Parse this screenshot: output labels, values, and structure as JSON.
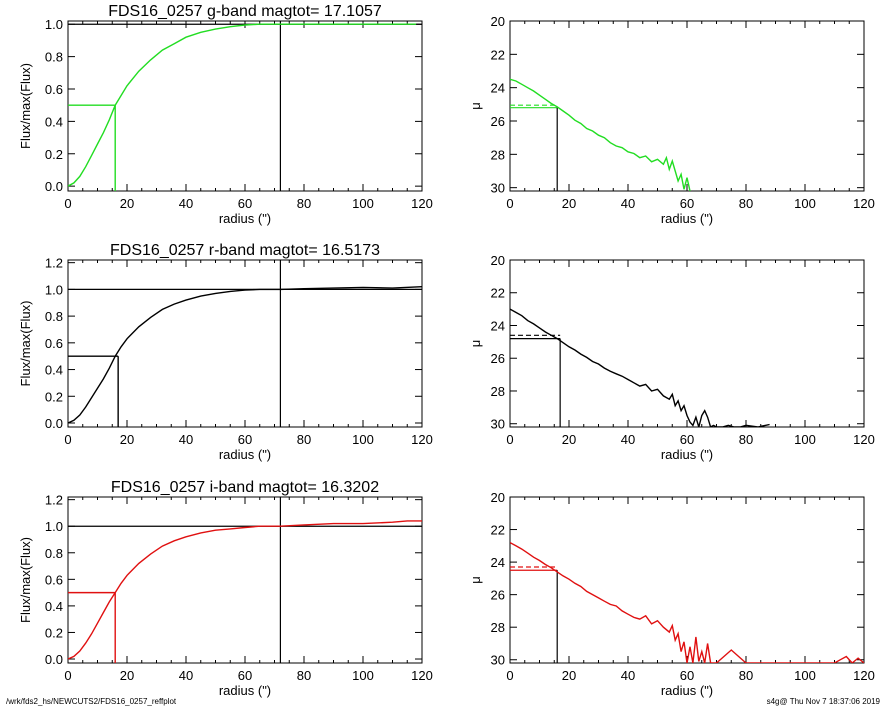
{
  "footer": {
    "path": "/wrk/fds2_hs/NEWCUTS2/FDS16_0257_reffplot",
    "stamp": "s4g@  Thu Nov  7 18:37:06 2019"
  },
  "colors": {
    "g": "#22dd22",
    "r": "#000000",
    "i": "#e01010"
  },
  "chart_data": [
    {
      "id": "g-growth",
      "type": "line",
      "title": "FDS16_0257 g-band  magtot=      17.1057",
      "xlabel": "radius (\")",
      "ylabel": "Flux/max(Flux)",
      "xlim": [
        0,
        120
      ],
      "ylim": [
        -0.03,
        1.02
      ],
      "xticks": [
        "0",
        "20",
        "40",
        "60",
        "80",
        "100",
        "120"
      ],
      "yticks": [
        "0.0",
        "0.2",
        "0.4",
        "0.6",
        "0.8",
        "1.0"
      ],
      "color": "#22dd22",
      "curve": {
        "x": [
          0,
          2,
          4,
          6,
          8,
          10,
          12,
          14,
          16,
          18,
          20,
          24,
          28,
          32,
          36,
          40,
          45,
          50,
          55,
          60,
          65,
          70,
          72,
          75,
          80,
          90,
          100,
          110,
          118
        ],
        "y": [
          0,
          0.02,
          0.06,
          0.12,
          0.19,
          0.26,
          0.33,
          0.41,
          0.5,
          0.56,
          0.62,
          0.71,
          0.78,
          0.84,
          0.88,
          0.92,
          0.95,
          0.97,
          0.985,
          0.995,
          1.0,
          1.0,
          1.0,
          1.0,
          1.0,
          1.0,
          1.0,
          1.0,
          1.0
        ]
      },
      "half_light": {
        "x": 16,
        "y": 0.5
      },
      "total_radius": 72
    },
    {
      "id": "g-profile",
      "type": "line",
      "title": "",
      "xlabel": "radius (\")",
      "ylabel": "μ",
      "xlim": [
        0,
        120
      ],
      "ylim": [
        20,
        30.2
      ],
      "xticks": [
        "0",
        "20",
        "40",
        "60",
        "80",
        "100",
        "120"
      ],
      "yticks": [
        "20",
        "22",
        "24",
        "26",
        "28",
        "30"
      ],
      "reversed_y": true,
      "color": "#22dd22",
      "curve": {
        "x": [
          0,
          2,
          4,
          6,
          8,
          10,
          12,
          14,
          16,
          18,
          20,
          22,
          24,
          26,
          28,
          30,
          32,
          34,
          36,
          38,
          40,
          42,
          44,
          46,
          48,
          50,
          52,
          53,
          54,
          55,
          56,
          57,
          58,
          59,
          60,
          61
        ],
        "y": [
          23.5,
          23.6,
          23.8,
          24.0,
          24.2,
          24.45,
          24.7,
          24.95,
          25.15,
          25.4,
          25.65,
          25.95,
          26.15,
          26.45,
          26.6,
          26.85,
          27.0,
          27.3,
          27.5,
          27.6,
          27.85,
          27.95,
          28.2,
          28.1,
          28.45,
          28.3,
          28.6,
          28.2,
          28.9,
          28.4,
          29.0,
          29.6,
          29.2,
          30.1,
          29.4,
          30.2
        ]
      },
      "half_light_mu": 25.2,
      "mean_mu": 25.05,
      "re": 16
    },
    {
      "id": "r-growth",
      "type": "line",
      "title": "FDS16_0257 r-band  magtot=      16.5173",
      "xlabel": "radius (\")",
      "ylabel": "Flux/max(Flux)",
      "xlim": [
        0,
        120
      ],
      "ylim": [
        -0.03,
        1.22
      ],
      "xticks": [
        "0",
        "20",
        "40",
        "60",
        "80",
        "100",
        "120"
      ],
      "yticks": [
        "0.0",
        "0.2",
        "0.4",
        "0.6",
        "0.8",
        "1.0",
        "1.2"
      ],
      "color": "#000000",
      "curve": {
        "x": [
          0,
          2,
          4,
          6,
          8,
          10,
          12,
          14,
          16,
          18,
          20,
          24,
          28,
          32,
          36,
          40,
          45,
          50,
          55,
          60,
          65,
          70,
          72,
          80,
          90,
          100,
          110,
          120
        ],
        "y": [
          0,
          0.02,
          0.06,
          0.12,
          0.19,
          0.26,
          0.33,
          0.41,
          0.5,
          0.57,
          0.63,
          0.72,
          0.79,
          0.85,
          0.89,
          0.92,
          0.95,
          0.97,
          0.985,
          0.995,
          1.0,
          1.0,
          1.0,
          1.005,
          1.01,
          1.015,
          1.01,
          1.02
        ]
      },
      "half_light": {
        "x": 17,
        "y": 0.5
      },
      "total_radius": 72
    },
    {
      "id": "r-profile",
      "type": "line",
      "title": "",
      "xlabel": "radius (\")",
      "ylabel": "μ",
      "xlim": [
        0,
        120
      ],
      "ylim": [
        20,
        30.2
      ],
      "xticks": [
        "0",
        "20",
        "40",
        "60",
        "80",
        "100",
        "120"
      ],
      "yticks": [
        "20",
        "22",
        "24",
        "26",
        "28",
        "30"
      ],
      "reversed_y": true,
      "color": "#000000",
      "curve": {
        "x": [
          0,
          2,
          4,
          6,
          8,
          10,
          12,
          14,
          16,
          18,
          20,
          22,
          24,
          26,
          28,
          30,
          32,
          34,
          36,
          38,
          40,
          42,
          44,
          46,
          48,
          50,
          52,
          54,
          55,
          56,
          57,
          58,
          59,
          60,
          61,
          62,
          63,
          64,
          65,
          66,
          67,
          68,
          69,
          70,
          72,
          74,
          76,
          78,
          80,
          84,
          88
        ],
        "y": [
          23.0,
          23.2,
          23.4,
          23.7,
          23.9,
          24.15,
          24.4,
          24.6,
          24.8,
          25.05,
          25.3,
          25.5,
          25.75,
          25.95,
          26.2,
          26.35,
          26.6,
          26.8,
          26.95,
          27.1,
          27.3,
          27.5,
          27.7,
          27.6,
          28.0,
          27.9,
          28.3,
          28.5,
          28.2,
          28.9,
          28.6,
          29.2,
          28.9,
          29.5,
          29.9,
          30.1,
          29.6,
          30.2,
          29.5,
          29.2,
          29.6,
          30.2,
          30.1,
          30.2,
          30.2,
          30.1,
          30.2,
          30.2,
          30.1,
          30.2,
          30.05
        ]
      },
      "half_light_mu": 24.8,
      "mean_mu": 24.6,
      "re": 17
    },
    {
      "id": "i-growth",
      "type": "line",
      "title": "FDS16_0257 i-band  magtot=      16.3202",
      "xlabel": "radius (\")",
      "ylabel": "Flux/max(Flux)",
      "xlim": [
        0,
        120
      ],
      "ylim": [
        -0.03,
        1.22
      ],
      "xticks": [
        "0",
        "20",
        "40",
        "60",
        "80",
        "100",
        "120"
      ],
      "yticks": [
        "0.0",
        "0.2",
        "0.4",
        "0.6",
        "0.8",
        "1.0",
        "1.2"
      ],
      "color": "#e01010",
      "curve": {
        "x": [
          0,
          2,
          4,
          6,
          8,
          10,
          12,
          14,
          16,
          18,
          20,
          24,
          28,
          32,
          36,
          40,
          45,
          50,
          55,
          60,
          65,
          70,
          72,
          80,
          90,
          100,
          110,
          115,
          120
        ],
        "y": [
          0,
          0.02,
          0.06,
          0.12,
          0.19,
          0.27,
          0.35,
          0.43,
          0.5,
          0.57,
          0.63,
          0.72,
          0.79,
          0.85,
          0.89,
          0.92,
          0.95,
          0.97,
          0.98,
          0.99,
          1.0,
          1.0,
          1.0,
          1.01,
          1.02,
          1.02,
          1.03,
          1.04,
          1.04
        ]
      },
      "half_light": {
        "x": 16,
        "y": 0.5
      },
      "total_radius": 72
    },
    {
      "id": "i-profile",
      "type": "line",
      "title": "",
      "xlabel": "radius (\")",
      "ylabel": "μ",
      "xlim": [
        0,
        120
      ],
      "ylim": [
        20,
        30.2
      ],
      "xticks": [
        "0",
        "20",
        "40",
        "60",
        "80",
        "100",
        "120"
      ],
      "yticks": [
        "20",
        "22",
        "24",
        "26",
        "28",
        "30"
      ],
      "reversed_y": true,
      "color": "#e01010",
      "curve": {
        "x": [
          0,
          2,
          4,
          6,
          8,
          10,
          12,
          14,
          16,
          18,
          20,
          22,
          24,
          26,
          28,
          30,
          32,
          34,
          36,
          38,
          40,
          42,
          44,
          46,
          48,
          50,
          52,
          54,
          55,
          56,
          57,
          58,
          59,
          60,
          61,
          62,
          63,
          64,
          65,
          66,
          67,
          68,
          70,
          75,
          80,
          90,
          110,
          112,
          114,
          116,
          118,
          120
        ],
        "y": [
          22.8,
          23.0,
          23.2,
          23.45,
          23.7,
          23.9,
          24.15,
          24.35,
          24.6,
          24.85,
          25.05,
          25.3,
          25.5,
          25.8,
          26.0,
          26.2,
          26.4,
          26.6,
          26.7,
          27.0,
          27.2,
          27.4,
          27.5,
          27.3,
          27.8,
          27.6,
          28.0,
          28.3,
          27.9,
          28.8,
          28.4,
          29.5,
          28.9,
          30.2,
          29.2,
          30.2,
          28.6,
          30.1,
          29.5,
          30.2,
          29.0,
          30.2,
          30.2,
          29.4,
          30.2,
          30.2,
          30.2,
          30.0,
          29.8,
          30.2,
          29.9,
          30.2
        ]
      },
      "half_light_mu": 24.5,
      "mean_mu": 24.3,
      "re": 16
    }
  ]
}
